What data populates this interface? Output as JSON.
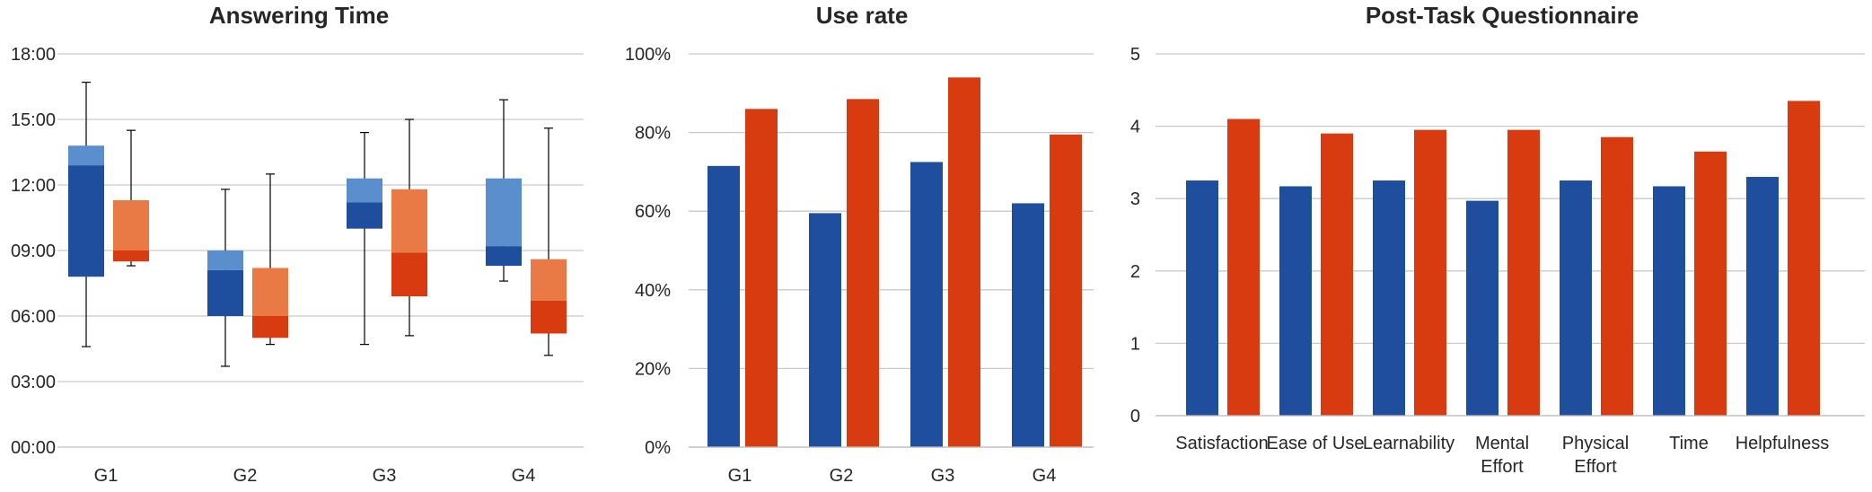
{
  "colors": {
    "blue_dark": "#1F4E9E",
    "blue_light": "#5B8ECC",
    "red_dark": "#D83B10",
    "red_light": "#E97A45",
    "grid": "#C9C9C9",
    "text": "#262626"
  },
  "chart_data": [
    {
      "type": "box",
      "title": "Answering Time",
      "xlabel": "",
      "ylabel": "",
      "yticks": [
        "00:00",
        "03:00",
        "06:00",
        "09:00",
        "12:00",
        "15:00",
        "18:00"
      ],
      "ylim": [
        0,
        18
      ],
      "y_unit": "minutes (mm:ss scale, values in minutes)",
      "grid": true,
      "legend": "none",
      "categories": [
        "G1",
        "G2",
        "G3",
        "G4"
      ],
      "series": [
        {
          "color": "#1F4E9E",
          "boxes": [
            {
              "min": 4.6,
              "q1": 7.8,
              "median": 12.9,
              "q3": 13.8,
              "max": 16.7
            },
            {
              "min": 3.7,
              "q1": 6.0,
              "median": 8.1,
              "q3": 9.0,
              "max": 11.8
            },
            {
              "min": 4.7,
              "q1": 10.0,
              "median": 11.2,
              "q3": 12.3,
              "max": 14.4
            },
            {
              "min": 7.6,
              "q1": 8.3,
              "median": 9.2,
              "q3": 12.3,
              "max": 15.9
            }
          ]
        },
        {
          "color": "#D83B10",
          "boxes": [
            {
              "min": 8.3,
              "q1": 8.5,
              "median": 9.0,
              "q3": 11.3,
              "max": 14.5
            },
            {
              "min": 4.7,
              "q1": 5.0,
              "median": 6.0,
              "q3": 8.2,
              "max": 12.5
            },
            {
              "min": 5.1,
              "q1": 6.9,
              "median": 8.9,
              "q3": 11.8,
              "max": 15.0
            },
            {
              "min": 4.2,
              "q1": 5.2,
              "median": 6.7,
              "q3": 8.6,
              "max": 14.6
            }
          ]
        }
      ]
    },
    {
      "type": "bar",
      "title": "Use rate",
      "xlabel": "",
      "ylabel": "",
      "yticks": [
        "0%",
        "20%",
        "40%",
        "60%",
        "80%",
        "100%"
      ],
      "ylim": [
        0,
        100
      ],
      "grid": true,
      "legend": "none",
      "categories": [
        "G1",
        "G2",
        "G3",
        "G4"
      ],
      "series": [
        {
          "color": "#1F4E9E",
          "values": [
            71.5,
            59.5,
            72.5,
            62.0
          ]
        },
        {
          "color": "#D83B10",
          "values": [
            86.0,
            88.5,
            94.0,
            79.5
          ]
        }
      ]
    },
    {
      "type": "bar",
      "title": "Post-Task Questionnaire",
      "xlabel": "",
      "ylabel": "",
      "yticks": [
        "0",
        "1",
        "2",
        "3",
        "4",
        "5"
      ],
      "ylim": [
        0,
        5
      ],
      "grid": true,
      "legend": "none",
      "categories": [
        "Satisfaction",
        "Ease of Use",
        "Learnability",
        "Mental\nEffort",
        "Physical\nEffort",
        "Time",
        "Helpfulness"
      ],
      "series": [
        {
          "color": "#1F4E9E",
          "values": [
            3.25,
            3.17,
            3.25,
            2.97,
            3.25,
            3.17,
            3.3
          ]
        },
        {
          "color": "#D83B10",
          "values": [
            4.1,
            3.9,
            3.95,
            3.95,
            3.85,
            3.65,
            4.35
          ]
        }
      ]
    }
  ]
}
